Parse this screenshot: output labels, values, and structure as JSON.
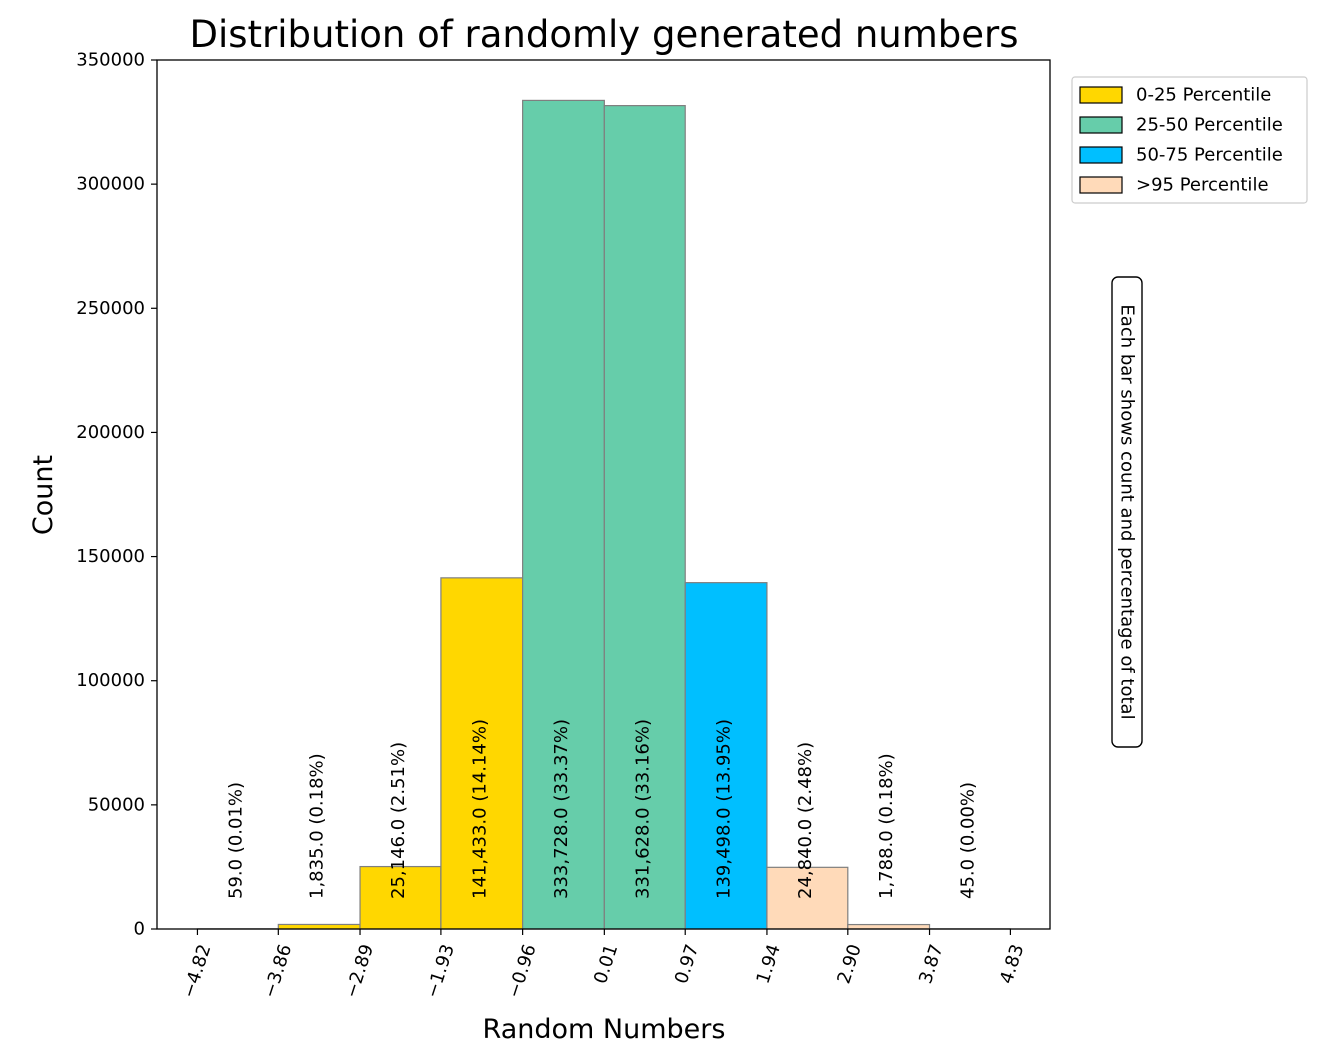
{
  "chart_data": {
    "type": "bar",
    "title": "Distribution of randomly generated numbers",
    "xlabel": "Random Numbers",
    "ylabel": "Count",
    "ylim": [
      0,
      350000
    ],
    "xlim": [
      -5.3,
      5.3
    ],
    "yticks": [
      0,
      50000,
      100000,
      150000,
      200000,
      250000,
      300000,
      350000
    ],
    "ytick_labels": [
      "0",
      "50000",
      "100000",
      "150000",
      "200000",
      "250000",
      "300000",
      "350000"
    ],
    "xticks": [
      -4.82,
      -3.86,
      -2.89,
      -1.93,
      -0.96,
      0.01,
      0.97,
      1.94,
      2.9,
      3.87,
      4.83
    ],
    "xtick_labels": [
      "−4.82",
      "−3.86",
      "−2.89",
      "−1.93",
      "−0.96",
      "0.01",
      "0.97",
      "1.94",
      "2.90",
      "3.87",
      "4.83"
    ],
    "bins": [
      {
        "x0": -4.82,
        "x1": -3.86,
        "count": 59,
        "label": "59.0  (0.01%)",
        "group": "0-25 Percentile"
      },
      {
        "x0": -3.86,
        "x1": -2.89,
        "count": 1835,
        "label": "1,835.0  (0.18%)",
        "group": "0-25 Percentile"
      },
      {
        "x0": -2.89,
        "x1": -1.93,
        "count": 25146,
        "label": "25,146.0  (2.51%)",
        "group": "0-25 Percentile"
      },
      {
        "x0": -1.93,
        "x1": -0.96,
        "count": 141433,
        "label": "141,433.0  (14.14%)",
        "group": "0-25 Percentile"
      },
      {
        "x0": -0.96,
        "x1": 0.01,
        "count": 333728,
        "label": "333,728.0  (33.37%)",
        "group": "25-50 Percentile"
      },
      {
        "x0": 0.01,
        "x1": 0.97,
        "count": 331628,
        "label": "331,628.0  (33.16%)",
        "group": "25-50 Percentile"
      },
      {
        "x0": 0.97,
        "x1": 1.94,
        "count": 139498,
        "label": "139,498.0  (13.95%)",
        "group": "50-75 Percentile"
      },
      {
        "x0": 1.94,
        "x1": 2.9,
        "count": 24840,
        "label": "24,840.0  (2.48%)",
        "group": ">95 Percentile"
      },
      {
        "x0": 2.9,
        "x1": 3.87,
        "count": 1788,
        "label": "1,788.0  (0.18%)",
        "group": ">95 Percentile"
      },
      {
        "x0": 3.87,
        "x1": 4.83,
        "count": 45,
        "label": "45.0  (0.00%)",
        "group": ">95 Percentile"
      }
    ],
    "legend": [
      {
        "name": "0-25 Percentile",
        "color": "#FFD700"
      },
      {
        "name": "25-50 Percentile",
        "color": "#66CDAA"
      },
      {
        "name": "50-75 Percentile",
        "color": "#00BFFF"
      },
      {
        "name": ">95 Percentile",
        "color": "#FFDAB9"
      }
    ],
    "legend_position": "upper-right-outside",
    "annotation": "Each bar shows count and percentage of total",
    "grid": false
  }
}
